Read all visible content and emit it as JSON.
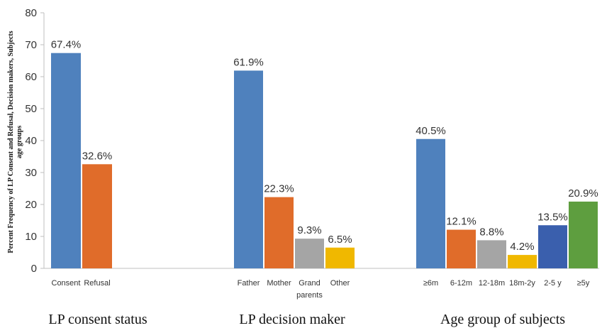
{
  "chart_data": {
    "type": "bar",
    "ylabel_lines": [
      "Percent Frequency of LP Consent and Refusal, Decision makers, Subjects",
      "age groups"
    ],
    "ylim": [
      0,
      80
    ],
    "yticks": [
      0,
      10,
      20,
      30,
      40,
      50,
      60,
      70,
      80
    ],
    "grid": false,
    "legend": "none",
    "groups": [
      {
        "title": "LP consent status",
        "bars": [
          {
            "category": "Consent",
            "value": 67.4,
            "label": "67.4%",
            "color": "#4f81bd"
          },
          {
            "category": "Refusal",
            "value": 32.6,
            "label": "32.6%",
            "color": "#e06c2a"
          }
        ]
      },
      {
        "title": "LP decision maker",
        "bars": [
          {
            "category": "Father",
            "value": 61.9,
            "label": "61.9%",
            "color": "#4f81bd"
          },
          {
            "category": "Mother",
            "value": 22.3,
            "label": "22.3%",
            "color": "#e06c2a"
          },
          {
            "category": "Grand parents",
            "category_lines": [
              "Grand",
              "parents"
            ],
            "value": 9.3,
            "label": "9.3%",
            "color": "#a5a5a5"
          },
          {
            "category": "Other",
            "value": 6.5,
            "label": "6.5%",
            "color": "#f0b800"
          }
        ]
      },
      {
        "title": "Age group of subjects",
        "bars": [
          {
            "category": "≥6m",
            "value": 40.5,
            "label": "40.5%",
            "color": "#4f81bd"
          },
          {
            "category": "6-12m",
            "value": 12.1,
            "label": "12.1%",
            "color": "#e06c2a"
          },
          {
            "category": "12-18m",
            "value": 8.8,
            "label": "8.8%",
            "color": "#a5a5a5"
          },
          {
            "category": "18m-2y",
            "value": 4.2,
            "label": "4.2%",
            "color": "#f0b800"
          },
          {
            "category": "2-5 y",
            "value": 13.5,
            "label": "13.5%",
            "color": "#3a5fad"
          },
          {
            "category": "≥5y",
            "value": 20.9,
            "label": "20.9%",
            "color": "#5e9e3f"
          }
        ]
      }
    ]
  }
}
